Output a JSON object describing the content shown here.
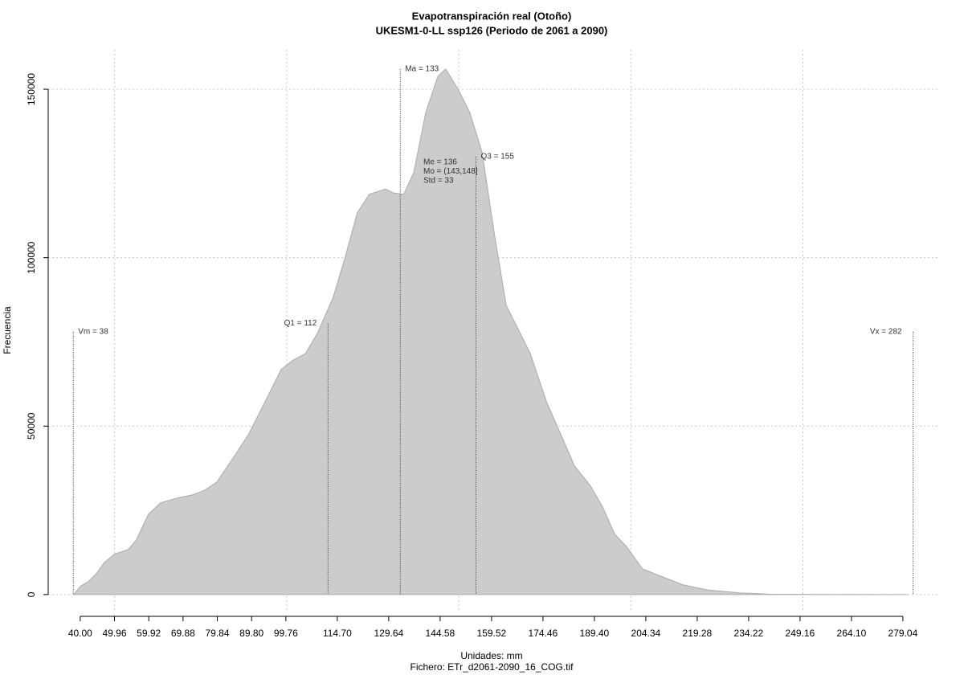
{
  "chart_data": {
    "type": "area",
    "title": "Evapotranspiración real (Otoño)",
    "subtitle": "UKESM1-0-LL ssp126 (Periodo de 2061 a 2090)",
    "x_label": "Unidades: mm",
    "footer": "Fichero: ETr_d2061-2090_16_COG.tif",
    "y_label": "Frecuencia",
    "color": "#cccccc",
    "x": [
      38.1,
      40,
      42.3,
      44.7,
      47,
      50,
      54,
      56.3,
      59.8,
      63.3,
      68,
      72.7,
      76.2,
      79.7,
      84.4,
      89,
      93.7,
      98.4,
      101.9,
      105.4,
      108.9,
      113.5,
      117,
      120.5,
      124,
      128.7,
      131,
      134,
      136.9,
      140.4,
      143.9,
      146.2,
      149.7,
      153.2,
      156.8,
      160.3,
      163.8,
      167.3,
      170.8,
      175.5,
      180.1,
      183.6,
      188.3,
      191.7,
      195.3,
      198.7,
      203.4,
      208.1,
      215.1,
      222.1,
      231.4,
      240.8,
      250.1,
      280.4
    ],
    "values": [
      0,
      2400,
      3800,
      6200,
      9500,
      12000,
      13400,
      16200,
      23800,
      27200,
      28600,
      29600,
      31000,
      33400,
      40500,
      47700,
      57200,
      66800,
      69600,
      71500,
      77500,
      88200,
      100200,
      113300,
      118800,
      120400,
      119200,
      118800,
      125200,
      143100,
      153800,
      156000,
      150200,
      143100,
      131200,
      107300,
      85800,
      78700,
      71500,
      57200,
      46500,
      38200,
      32200,
      26200,
      17900,
      14300,
      7600,
      5700,
      2900,
      1400,
      500,
      100,
      50,
      0
    ],
    "annotations": [
      {
        "label": "Vm = 38",
        "x": 38,
        "y": 78000
      },
      {
        "label": "Q1 = 112",
        "x": 112,
        "y": 80500
      },
      {
        "label": "Ma = 133",
        "x": 133,
        "y": 156000
      },
      {
        "label": "Q3 = 155",
        "x": 155,
        "y": 130000
      },
      {
        "label": "Vx = 282",
        "x": 282,
        "y": 78000
      }
    ],
    "stats": [
      "Me = 136",
      "Mo = (143,148]",
      "Std = 33"
    ],
    "xlim": [
      30.7,
      289.8
    ],
    "ylim": [
      -4800,
      161700
    ],
    "xticks": [
      {
        "value": 40,
        "label": "40.00"
      },
      49.96,
      59.92,
      69.88,
      79.84,
      {
        "value": 89.8,
        "label": "89.80"
      },
      99.76,
      {
        "value": 114.7,
        "label": "114.70"
      },
      129.64,
      144.58,
      159.52,
      174.46,
      {
        "value": 189.4,
        "label": "189.40"
      },
      204.34,
      219.28,
      234.22,
      249.16,
      {
        "value": 264.1,
        "label": "264.10"
      },
      279.04
    ],
    "yticks": [
      0,
      50000,
      100000,
      150000
    ],
    "xgrid": [
      50,
      100,
      150,
      200,
      250
    ],
    "grid": true
  }
}
